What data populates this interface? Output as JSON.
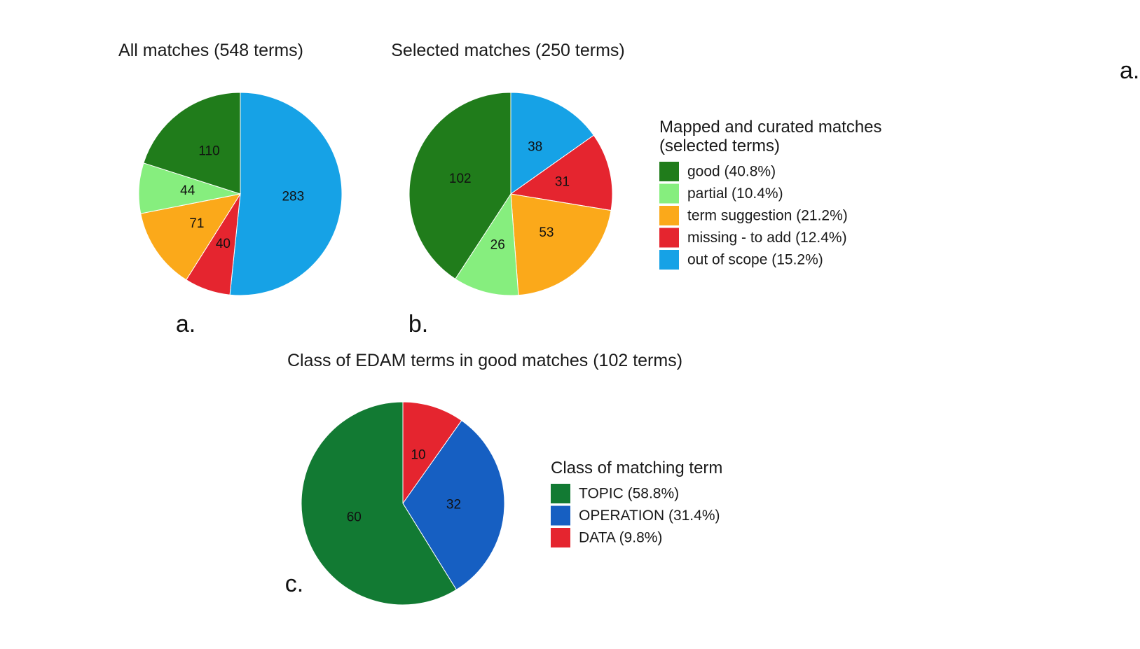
{
  "chart_data": [
    {
      "type": "pie",
      "title": "All matches (548 terms)",
      "panel_label": "a.",
      "start_angle_deg": 0,
      "direction": "clockwise",
      "slices": [
        {
          "label": "out of scope",
          "value": 283,
          "color": "#16A2E6"
        },
        {
          "label": "missing - to add",
          "value": 40,
          "color": "#E5252F"
        },
        {
          "label": "term suggestion",
          "value": 71,
          "color": "#FBA91A"
        },
        {
          "label": "partial",
          "value": 44,
          "color": "#86EE7E"
        },
        {
          "label": "good",
          "value": 110,
          "color": "#207C1B"
        }
      ]
    },
    {
      "type": "pie",
      "title": "Selected matches (250 terms)",
      "panel_label": "b.",
      "start_angle_deg": 0,
      "direction": "clockwise",
      "slices": [
        {
          "label": "out of scope",
          "value": 38,
          "color": "#16A2E6"
        },
        {
          "label": "missing - to add",
          "value": 31,
          "color": "#E5252F"
        },
        {
          "label": "term suggestion",
          "value": 53,
          "color": "#FBA91A"
        },
        {
          "label": "partial",
          "value": 26,
          "color": "#86EE7E"
        },
        {
          "label": "good",
          "value": 102,
          "color": "#207C1B"
        }
      ],
      "legend": {
        "title_lines": [
          "Mapped and curated matches",
          "(selected terms)"
        ],
        "entries": [
          {
            "text": "good (40.8%)",
            "color": "#207C1B"
          },
          {
            "text": "partial (10.4%)",
            "color": "#86EE7E"
          },
          {
            "text": "term suggestion (21.2%)",
            "color": "#FBA91A"
          },
          {
            "text": "missing - to add (12.4%)",
            "color": "#E5252F"
          },
          {
            "text": "out of scope (15.2%)",
            "color": "#16A2E6"
          }
        ]
      }
    },
    {
      "type": "pie",
      "title": "Class of EDAM terms in good matches (102 terms)",
      "panel_label": "c.",
      "start_angle_deg": 0,
      "direction": "clockwise",
      "slices": [
        {
          "label": "DATA",
          "value": 10,
          "color": "#E5252F"
        },
        {
          "label": "OPERATION",
          "value": 32,
          "color": "#165FC2"
        },
        {
          "label": "TOPIC",
          "value": 60,
          "color": "#127A33"
        }
      ],
      "legend": {
        "title_lines": [
          "Class of matching term"
        ],
        "entries": [
          {
            "text": "TOPIC (58.8%)",
            "color": "#127A33"
          },
          {
            "text": "OPERATION (31.4%)",
            "color": "#165FC2"
          },
          {
            "text": "DATA (9.8%)",
            "color": "#E5252F"
          }
        ]
      }
    }
  ],
  "stray_label": "a."
}
